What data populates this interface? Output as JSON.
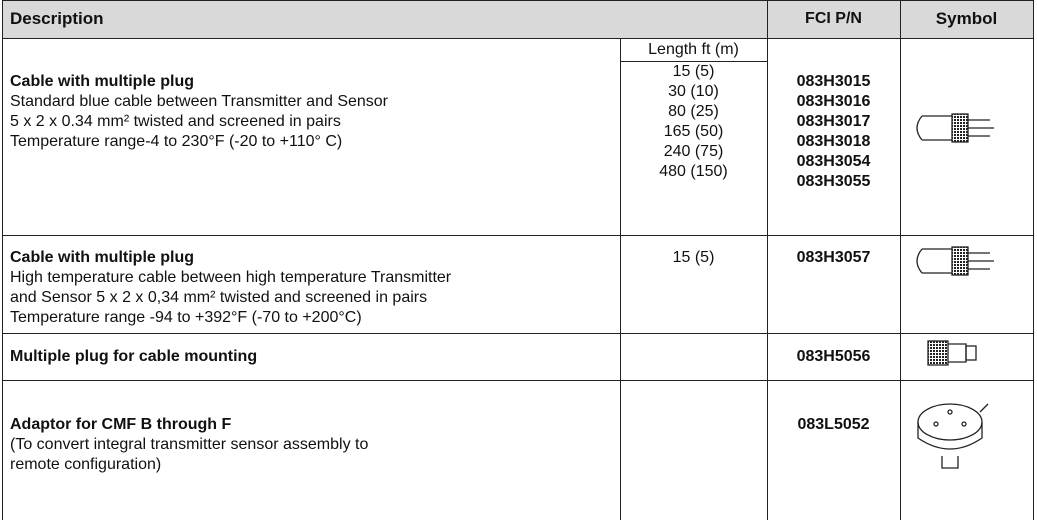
{
  "header": {
    "description": "Description",
    "part_number": "FCI P/N",
    "symbol": "Symbol"
  },
  "length_heading": "Length ft (m)",
  "rows": [
    {
      "title": "Cable with multiple plug",
      "lines": [
        "Standard blue cable between Transmitter and Sensor",
        "5 x 2 x 0.34 mm² twisted and screened in pairs",
        "Temperature range-4 to 230°F (-20 to +110° C)"
      ],
      "lengths": [
        "15 (5)",
        "30 (10)",
        "80 (25)",
        "165 (50)",
        "240 (75)",
        "480 (150)"
      ],
      "part_numbers": [
        "083H3015",
        "083H3016",
        "083H3017",
        "083H3018",
        "083H3054",
        "083H3055"
      ]
    },
    {
      "title": "Cable with multiple plug",
      "lines": [
        "High temperature cable between high temperature Transmitter",
        "and Sensor 5 x 2 x 0,34 mm² twisted and screened in pairs",
        "Temperature range -94 to +392°F (-70 to +200°C)"
      ],
      "lengths": [
        "15 (5)"
      ],
      "part_numbers": [
        "083H3057"
      ]
    },
    {
      "title": "Multiple plug for cable mounting",
      "lines": [],
      "lengths": [],
      "part_numbers": [
        "083H5056"
      ]
    },
    {
      "title": "Adaptor for CMF B through F",
      "lines": [
        "(To convert integral transmitter sensor assembly to",
        "remote configuration)"
      ],
      "lengths": [],
      "part_numbers": [
        "083L5052"
      ]
    }
  ]
}
